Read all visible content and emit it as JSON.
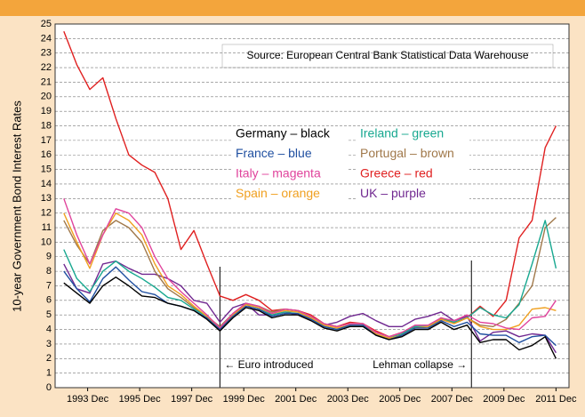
{
  "chart_data": {
    "type": "line",
    "y_label": "10-year Government Bond Interest Rates",
    "annotations": [
      "Source: European Central Bank Statistical Data Warehouse"
    ],
    "events": [
      {
        "x": "1999-01",
        "label": "← Euro introduced"
      },
      {
        "x": "2008-09",
        "label": "Lehman collapse →"
      }
    ],
    "x": [
      "1993-01",
      "1993-07",
      "1994-01",
      "1994-07",
      "1995-01",
      "1995-07",
      "1996-01",
      "1996-07",
      "1997-01",
      "1997-07",
      "1998-01",
      "1998-07",
      "1999-01",
      "1999-07",
      "2000-01",
      "2000-07",
      "2001-01",
      "2001-07",
      "2002-01",
      "2002-07",
      "2003-01",
      "2003-07",
      "2004-01",
      "2004-07",
      "2005-01",
      "2005-07",
      "2006-01",
      "2006-07",
      "2007-01",
      "2007-07",
      "2008-01",
      "2008-07",
      "2009-01",
      "2009-07",
      "2010-01",
      "2010-07",
      "2011-01",
      "2011-07",
      "2011-12"
    ],
    "xlim": [
      "1992-09",
      "2012-06"
    ],
    "xticks": [
      {
        "value": "1993-12",
        "label": "1993 Dec"
      },
      {
        "value": "1995-12",
        "label": "1995 Dec"
      },
      {
        "value": "1997-12",
        "label": "1997 Dec"
      },
      {
        "value": "1999-12",
        "label": "1999 Dec"
      },
      {
        "value": "2001-12",
        "label": "2001 Dec"
      },
      {
        "value": "2003-12",
        "label": "2003 Dec"
      },
      {
        "value": "2005-12",
        "label": "2005 Dec"
      },
      {
        "value": "2007-12",
        "label": "2007 Dec"
      },
      {
        "value": "2009-12",
        "label": "2009 Dec"
      },
      {
        "value": "2011-12",
        "label": "2011 Dec"
      }
    ],
    "ylim": [
      0,
      25
    ],
    "yticks": [
      0,
      1,
      2,
      3,
      4,
      5,
      6,
      7,
      8,
      9,
      10,
      11,
      12,
      13,
      14,
      15,
      16,
      17,
      18,
      19,
      20,
      21,
      22,
      23,
      24,
      25
    ],
    "grid": true,
    "series": [
      {
        "name": "Germany – black",
        "color": "#000000",
        "values": [
          7.2,
          6.5,
          5.8,
          7.0,
          7.6,
          7.0,
          6.3,
          6.2,
          5.8,
          5.6,
          5.3,
          4.7,
          3.9,
          4.8,
          5.5,
          5.3,
          4.8,
          5.0,
          5.0,
          4.6,
          4.1,
          3.9,
          4.2,
          4.2,
          3.6,
          3.3,
          3.5,
          4.0,
          4.0,
          4.5,
          4.0,
          4.3,
          3.1,
          3.3,
          3.3,
          2.6,
          2.9,
          3.5,
          2.0
        ]
      },
      {
        "name": "France – blue",
        "color": "#1f4fa0",
        "values": [
          8.0,
          6.8,
          5.9,
          7.5,
          8.3,
          7.4,
          6.6,
          6.4,
          5.8,
          5.6,
          5.3,
          4.8,
          4.0,
          4.9,
          5.6,
          5.4,
          4.9,
          5.1,
          5.1,
          4.7,
          4.2,
          4.0,
          4.3,
          4.3,
          3.6,
          3.3,
          3.6,
          4.1,
          4.1,
          4.6,
          4.2,
          4.5,
          3.7,
          3.6,
          3.6,
          3.1,
          3.5,
          3.6,
          2.9
        ]
      },
      {
        "name": "Italy – magenta",
        "color": "#e0449c",
        "values": [
          13.0,
          10.5,
          8.5,
          10.5,
          12.3,
          12.0,
          11.0,
          9.0,
          7.5,
          6.6,
          5.8,
          5.0,
          4.1,
          5.1,
          5.8,
          5.6,
          5.1,
          5.4,
          5.3,
          4.9,
          4.4,
          4.2,
          4.4,
          4.4,
          3.8,
          3.5,
          3.8,
          4.3,
          4.3,
          4.8,
          4.6,
          5.0,
          4.5,
          4.4,
          4.1,
          4.0,
          4.8,
          4.9,
          6.0
        ]
      },
      {
        "name": "Spain – orange",
        "color": "#f0a020",
        "values": [
          12.0,
          10.0,
          8.2,
          10.5,
          12.0,
          11.5,
          10.5,
          8.5,
          7.0,
          6.4,
          5.6,
          4.9,
          4.1,
          5.0,
          5.7,
          5.5,
          5.1,
          5.3,
          5.2,
          4.8,
          4.3,
          4.1,
          4.3,
          4.3,
          3.7,
          3.4,
          3.6,
          4.1,
          4.2,
          4.7,
          4.4,
          4.8,
          4.2,
          4.0,
          4.0,
          4.3,
          5.4,
          5.5,
          5.3
        ]
      },
      {
        "name": "Ireland – green",
        "color": "#18a890",
        "values": [
          9.5,
          7.5,
          6.6,
          8.0,
          8.7,
          8.0,
          7.5,
          6.9,
          6.2,
          6.0,
          5.4,
          4.9,
          4.1,
          5.0,
          5.7,
          5.5,
          5.0,
          5.2,
          5.2,
          4.8,
          4.2,
          4.0,
          4.3,
          4.3,
          3.7,
          3.4,
          3.7,
          4.2,
          4.2,
          4.7,
          4.5,
          4.8,
          5.5,
          5.0,
          4.8,
          5.7,
          8.5,
          11.5,
          8.2
        ]
      },
      {
        "name": "Portugal – brown",
        "color": "#a0784a",
        "values": [
          11.5,
          9.8,
          8.5,
          10.8,
          11.5,
          11.0,
          10.0,
          8.0,
          6.8,
          6.2,
          5.5,
          4.9,
          4.2,
          5.1,
          5.8,
          5.6,
          5.2,
          5.4,
          5.3,
          4.9,
          4.4,
          4.2,
          4.4,
          4.4,
          3.7,
          3.4,
          3.7,
          4.2,
          4.2,
          4.8,
          4.5,
          4.8,
          4.3,
          4.2,
          4.7,
          5.8,
          7.0,
          11.0,
          11.7
        ]
      },
      {
        "name": "Greece – red",
        "color": "#e02020",
        "values": [
          24.5,
          22.2,
          20.5,
          21.3,
          18.5,
          16.0,
          15.3,
          14.8,
          13.0,
          9.5,
          10.8,
          8.5,
          6.3,
          6.0,
          6.4,
          6.0,
          5.3,
          5.4,
          5.3,
          5.0,
          4.4,
          4.2,
          4.5,
          4.4,
          3.9,
          3.5,
          3.8,
          4.2,
          4.2,
          4.7,
          4.4,
          4.8,
          5.6,
          4.9,
          6.0,
          10.3,
          11.5,
          16.5,
          18.0
        ]
      },
      {
        "name": "UK – purple",
        "color": "#702890",
        "values": [
          8.5,
          6.8,
          6.5,
          8.5,
          8.7,
          8.2,
          7.8,
          7.8,
          7.5,
          7.0,
          6.0,
          5.8,
          4.5,
          5.5,
          5.8,
          5.0,
          5.0,
          5.2,
          5.0,
          4.8,
          4.3,
          4.5,
          4.9,
          5.1,
          4.6,
          4.2,
          4.2,
          4.7,
          4.9,
          5.2,
          4.6,
          4.9,
          3.2,
          3.8,
          3.9,
          3.5,
          3.7,
          3.6,
          2.4
        ]
      }
    ]
  }
}
